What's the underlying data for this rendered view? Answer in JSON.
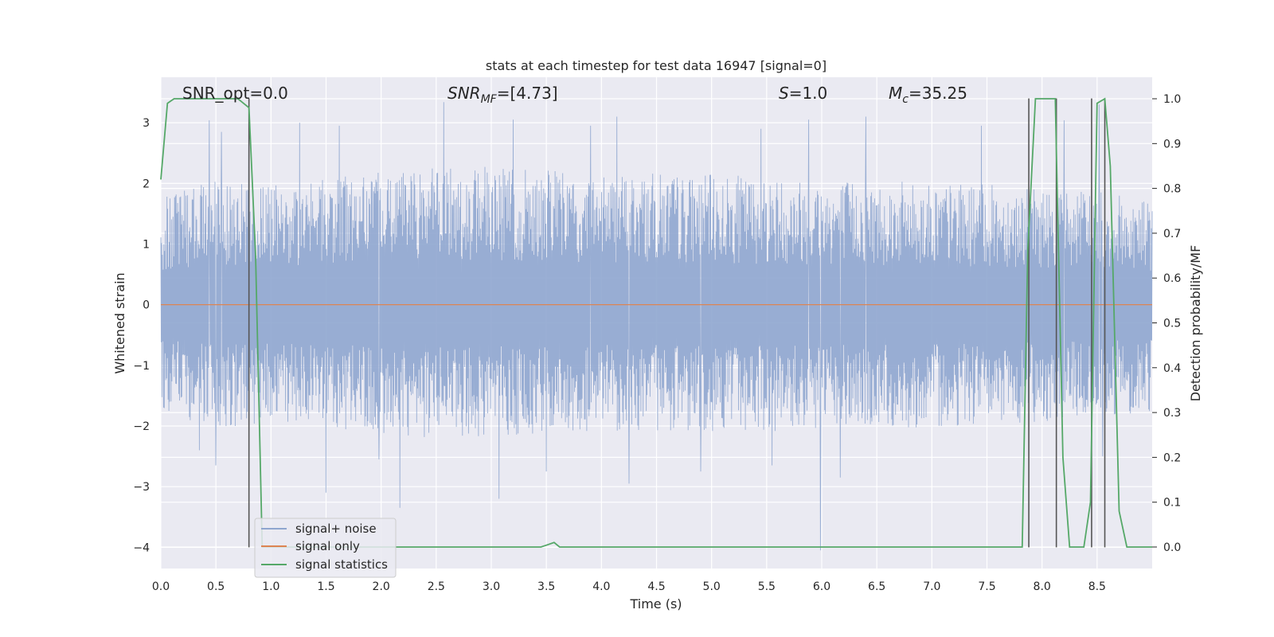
{
  "chart_data": {
    "type": "line",
    "title": "stats at each timestep for test data 16947 [signal=0]",
    "xlabel": "Time (s)",
    "ylabel": "Whitened strain",
    "y2label": "Detection probability/MF",
    "xlim": [
      0.0,
      9.0
    ],
    "ylim": [
      -4.35,
      3.75
    ],
    "y2lim": [
      -0.048,
      1.048
    ],
    "xticks": [
      0.0,
      0.5,
      1.0,
      1.5,
      2.0,
      2.5,
      3.0,
      3.5,
      4.0,
      4.5,
      5.0,
      5.5,
      6.0,
      6.5,
      7.0,
      7.5,
      8.0,
      8.5
    ],
    "xticklabels": [
      "0.0",
      "0.5",
      "1.0",
      "1.5",
      "2.0",
      "2.5",
      "3.0",
      "3.5",
      "4.0",
      "4.5",
      "5.0",
      "5.5",
      "6.0",
      "6.5",
      "7.0",
      "7.5",
      "8.0",
      "8.5"
    ],
    "yticks": [
      3,
      2,
      1,
      0,
      -1,
      -2,
      -3,
      -4
    ],
    "yticklabels": [
      "3",
      "2",
      "1",
      "0",
      "−1",
      "−2",
      "−3",
      "−4"
    ],
    "y2ticks": [
      1.0,
      0.9,
      0.8,
      0.7,
      0.6,
      0.5,
      0.4,
      0.3,
      0.2,
      0.1,
      0.0
    ],
    "y2ticklabels": [
      "1.0",
      "0.9",
      "0.8",
      "0.7",
      "0.6",
      "0.5",
      "0.4",
      "0.3",
      "0.2",
      "0.1",
      "0.0"
    ],
    "grid": true,
    "legend_placement": "lower-left",
    "annotations": {
      "snr_opt": "SNR_opt=0.0",
      "snr_mf_label": "SNR",
      "snr_mf_sub": "MF",
      "snr_mf_value": "=[4.73]",
      "s_label": "S",
      "s_value": "=1.0",
      "mc_label": "M",
      "mc_sub": "c",
      "mc_value": "=35.25"
    },
    "series": [
      {
        "name": "signal+ noise",
        "color": "#8fa6cf",
        "kind": "noise",
        "envelope_upper": [
          [
            0.0,
            1.6
          ],
          [
            0.5,
            1.9
          ],
          [
            1.0,
            1.8
          ],
          [
            2.5,
            2.1
          ],
          [
            4.0,
            2.0
          ],
          [
            6.0,
            1.9
          ],
          [
            7.5,
            1.8
          ],
          [
            8.5,
            1.7
          ],
          [
            9.0,
            1.6
          ]
        ],
        "envelope_lower": [
          [
            0.0,
            -1.6
          ],
          [
            0.5,
            -1.9
          ],
          [
            1.0,
            -1.8
          ],
          [
            2.5,
            -2.0
          ],
          [
            4.0,
            -1.9
          ],
          [
            6.0,
            -1.9
          ],
          [
            7.5,
            -1.8
          ],
          [
            8.5,
            -1.7
          ],
          [
            9.0,
            -1.6
          ]
        ],
        "peaks_upper": [
          [
            0.44,
            3.04
          ],
          [
            0.55,
            2.85
          ],
          [
            0.8,
            3.3
          ],
          [
            1.26,
            3.0
          ],
          [
            1.62,
            2.95
          ],
          [
            2.57,
            3.34
          ],
          [
            3.2,
            3.05
          ],
          [
            3.9,
            2.95
          ],
          [
            4.14,
            3.1
          ],
          [
            5.45,
            2.9
          ],
          [
            5.88,
            3.05
          ],
          [
            6.4,
            3.1
          ],
          [
            7.45,
            2.95
          ],
          [
            8.2,
            3.04
          ],
          [
            8.52,
            3.3
          ]
        ],
        "peaks_lower": [
          [
            0.35,
            -2.4
          ],
          [
            0.5,
            -2.65
          ],
          [
            1.5,
            -3.1
          ],
          [
            1.98,
            -2.55
          ],
          [
            2.17,
            -3.35
          ],
          [
            3.07,
            -3.2
          ],
          [
            3.5,
            -2.75
          ],
          [
            4.25,
            -2.95
          ],
          [
            4.9,
            -2.75
          ],
          [
            5.55,
            -2.65
          ],
          [
            5.99,
            -4.05
          ],
          [
            6.17,
            -2.85
          ],
          [
            8.55,
            -2.5
          ]
        ]
      },
      {
        "name": "signal only",
        "color": "#dd8452",
        "values": [
          [
            0.0,
            0.0
          ],
          [
            9.0,
            0.0
          ]
        ]
      },
      {
        "name": "signal statistics",
        "color": "#55a868",
        "axis": "right",
        "values": [
          [
            0.0,
            0.82
          ],
          [
            0.06,
            0.99
          ],
          [
            0.12,
            1.0
          ],
          [
            0.7,
            1.0
          ],
          [
            0.8,
            0.98
          ],
          [
            0.86,
            0.65
          ],
          [
            0.92,
            0.0
          ],
          [
            3.45,
            0.0
          ],
          [
            3.5,
            0.004
          ],
          [
            3.57,
            0.01
          ],
          [
            3.62,
            0.0
          ],
          [
            7.82,
            0.0
          ],
          [
            7.87,
            0.66
          ],
          [
            7.94,
            1.0
          ],
          [
            8.12,
            1.0
          ],
          [
            8.19,
            0.2
          ],
          [
            8.25,
            0.0
          ],
          [
            8.38,
            0.0
          ],
          [
            8.44,
            0.1
          ],
          [
            8.5,
            0.99
          ],
          [
            8.57,
            1.0
          ],
          [
            8.62,
            0.85
          ],
          [
            8.7,
            0.08
          ],
          [
            8.77,
            0.0
          ],
          [
            9.0,
            0.0
          ]
        ]
      }
    ],
    "vlines": [
      {
        "x": 0.8,
        "y_from": -4.0,
        "y_to": 3.4
      },
      {
        "x": 7.88,
        "y_from": -4.0,
        "y_to": 3.4
      },
      {
        "x": 8.13,
        "y_from": -4.0,
        "y_to": 3.4
      },
      {
        "x": 8.45,
        "y_from": -4.0,
        "y_to": 3.4
      },
      {
        "x": 8.57,
        "y_from": -4.0,
        "y_to": 3.4
      }
    ]
  }
}
